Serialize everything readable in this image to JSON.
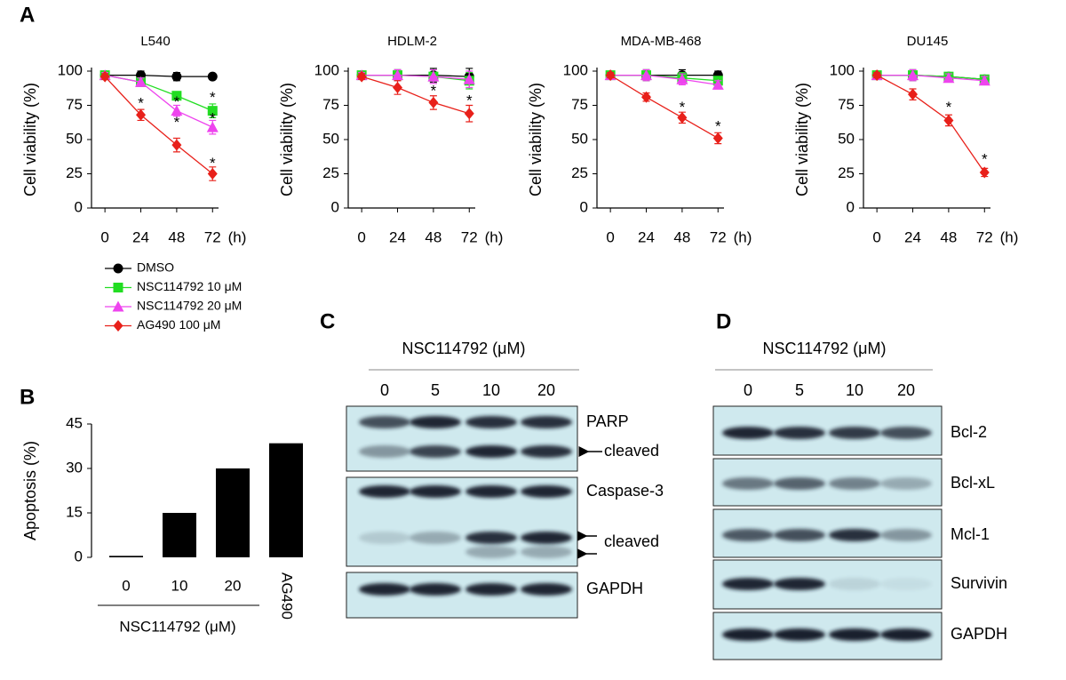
{
  "panel_labels": [
    "A",
    "B",
    "C",
    "D"
  ],
  "chart_data": [
    {
      "type": "line",
      "title": "L540",
      "y_label": "Cell viability (%)",
      "x_label": "(h)",
      "x": [
        0,
        24,
        48,
        72
      ],
      "xlim": [
        -9,
        76
      ],
      "xticks": [
        0,
        24,
        48,
        72
      ],
      "ylim": [
        0,
        100
      ],
      "yticks": [
        0,
        25,
        50,
        75,
        100
      ],
      "series": [
        {
          "name": "DMSO",
          "color": "#000000",
          "marker": "circle",
          "values": [
            97,
            97,
            96,
            96
          ],
          "errors": [
            2,
            3,
            3,
            2
          ]
        },
        {
          "name": "NSC114792 10 μM",
          "color": "#22dd22",
          "marker": "square",
          "values": [
            97,
            92,
            82,
            71
          ],
          "errors": [
            2,
            3,
            3,
            5
          ]
        },
        {
          "name": "NSC114792 20 μM",
          "color": "#ee44ee",
          "marker": "triangle",
          "values": [
            97,
            92,
            71,
            59
          ],
          "errors": [
            2,
            3,
            4,
            5
          ]
        },
        {
          "name": "AG490 100 μM",
          "color": "#e8201a",
          "marker": "diamond",
          "values": [
            96,
            68,
            46,
            25
          ],
          "errors": [
            2,
            4,
            5,
            5
          ]
        }
      ],
      "annotations": [
        {
          "text": "*",
          "x": 24,
          "y": 78
        },
        {
          "text": "*",
          "x": 48,
          "y": 79
        },
        {
          "text": "*",
          "x": 48,
          "y": 64
        },
        {
          "text": "*",
          "x": 72,
          "y": 82
        },
        {
          "text": "*",
          "x": 72,
          "y": 67
        },
        {
          "text": "*",
          "x": 72,
          "y": 34
        }
      ]
    },
    {
      "type": "line",
      "title": "HDLM-2",
      "y_label": "Cell viability (%)",
      "x_label": "(h)",
      "x": [
        0,
        24,
        48,
        72
      ],
      "xlim": [
        -9,
        76
      ],
      "xticks": [
        0,
        24,
        48,
        72
      ],
      "ylim": [
        0,
        100
      ],
      "yticks": [
        0,
        25,
        50,
        75,
        100
      ],
      "series": [
        {
          "name": "DMSO",
          "color": "#000000",
          "marker": "circle",
          "values": [
            97,
            97,
            97,
            96
          ],
          "errors": [
            2,
            4,
            5,
            6
          ]
        },
        {
          "name": "NSC114792 10 μM",
          "color": "#22dd22",
          "marker": "square",
          "values": [
            97,
            97,
            96,
            93
          ],
          "errors": [
            2,
            4,
            5,
            6
          ]
        },
        {
          "name": "NSC114792 20 μM",
          "color": "#ee44ee",
          "marker": "triangle",
          "values": [
            97,
            97,
            96,
            94
          ],
          "errors": [
            2,
            4,
            5,
            6
          ]
        },
        {
          "name": "AG490 100 μM",
          "color": "#e8201a",
          "marker": "diamond",
          "values": [
            96,
            88,
            77,
            69
          ],
          "errors": [
            2,
            5,
            5,
            6
          ]
        }
      ],
      "annotations": [
        {
          "text": "*",
          "x": 48,
          "y": 87
        },
        {
          "text": "*",
          "x": 72,
          "y": 80
        }
      ]
    },
    {
      "type": "line",
      "title": "MDA-MB-468",
      "y_label": "Cell viability (%)",
      "x_label": "(h)",
      "x": [
        0,
        24,
        48,
        72
      ],
      "xlim": [
        -9,
        76
      ],
      "xticks": [
        0,
        24,
        48,
        72
      ],
      "ylim": [
        0,
        100
      ],
      "yticks": [
        0,
        25,
        50,
        75,
        100
      ],
      "series": [
        {
          "name": "DMSO",
          "color": "#000000",
          "marker": "circle",
          "values": [
            97,
            97,
            97,
            97
          ],
          "errors": [
            2,
            4,
            4,
            3
          ]
        },
        {
          "name": "NSC114792 10 μM",
          "color": "#22dd22",
          "marker": "square",
          "values": [
            97,
            97,
            95,
            93
          ],
          "errors": [
            2,
            4,
            4,
            3
          ]
        },
        {
          "name": "NSC114792 20 μM",
          "color": "#ee44ee",
          "marker": "triangle",
          "values": [
            97,
            97,
            94,
            90
          ],
          "errors": [
            2,
            4,
            4,
            3
          ]
        },
        {
          "name": "AG490 100 μM",
          "color": "#e8201a",
          "marker": "diamond",
          "values": [
            97,
            81,
            66,
            51
          ],
          "errors": [
            2,
            3,
            4,
            4
          ]
        }
      ],
      "annotations": [
        {
          "text": "*",
          "x": 48,
          "y": 75
        },
        {
          "text": "*",
          "x": 72,
          "y": 61
        }
      ]
    },
    {
      "type": "line",
      "title": "DU145",
      "y_label": "Cell viability (%)",
      "x_label": "(h)",
      "x": [
        0,
        24,
        48,
        72
      ],
      "xlim": [
        -9,
        76
      ],
      "xticks": [
        0,
        24,
        48,
        72
      ],
      "ylim": [
        0,
        100
      ],
      "yticks": [
        0,
        25,
        50,
        75,
        100
      ],
      "series": [
        {
          "name": "DMSO",
          "color": "#000000",
          "marker": "circle",
          "values": [
            97,
            97,
            96,
            94
          ],
          "errors": [
            2,
            4,
            3,
            3
          ]
        },
        {
          "name": "NSC114792 10 μM",
          "color": "#22dd22",
          "marker": "square",
          "values": [
            97,
            97,
            96,
            94
          ],
          "errors": [
            2,
            4,
            3,
            3
          ]
        },
        {
          "name": "NSC114792 20 μM",
          "color": "#ee44ee",
          "marker": "triangle",
          "values": [
            97,
            97,
            95,
            93
          ],
          "errors": [
            2,
            4,
            3,
            3
          ]
        },
        {
          "name": "AG490 100 μM",
          "color": "#e8201a",
          "marker": "diamond",
          "values": [
            97,
            83,
            64,
            26
          ],
          "errors": [
            2,
            4,
            4,
            3
          ]
        }
      ],
      "annotations": [
        {
          "text": "*",
          "x": 48,
          "y": 75
        },
        {
          "text": "*",
          "x": 72,
          "y": 37
        }
      ]
    },
    {
      "type": "bar",
      "y_label": "Apoptosis (%)",
      "x_label": "NSC114792 (μM)",
      "categories": [
        "0",
        "10",
        "20",
        "AG490"
      ],
      "values": [
        0.5,
        15,
        30,
        38.5
      ],
      "color": "#000000",
      "ylim": [
        0,
        45
      ],
      "yticks": [
        0,
        15,
        30,
        45
      ]
    }
  ],
  "blots": [
    {
      "header": "NSC114792 (μM)",
      "lanes": [
        "0",
        "5",
        "10",
        "20"
      ],
      "labels": [
        "PARP",
        "cleaved",
        "Caspase-3",
        "cleaved",
        "GAPDH"
      ]
    },
    {
      "header": "NSC114792 (μM)",
      "lanes": [
        "0",
        "5",
        "10",
        "20"
      ],
      "labels": [
        "Bcl-2",
        "Bcl-xL",
        "Mcl-1",
        "Survivin",
        "GAPDH"
      ]
    }
  ]
}
